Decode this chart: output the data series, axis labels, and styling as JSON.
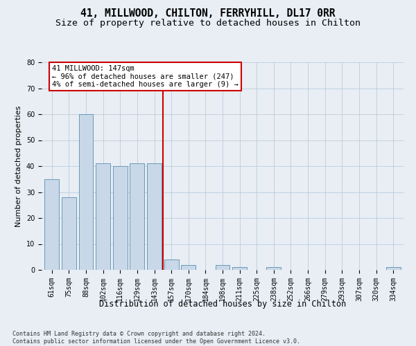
{
  "title": "41, MILLWOOD, CHILTON, FERRYHILL, DL17 0RR",
  "subtitle": "Size of property relative to detached houses in Chilton",
  "xlabel": "Distribution of detached houses by size in Chilton",
  "ylabel": "Number of detached properties",
  "categories": [
    "61sqm",
    "75sqm",
    "88sqm",
    "102sqm",
    "116sqm",
    "129sqm",
    "143sqm",
    "157sqm",
    "170sqm",
    "184sqm",
    "198sqm",
    "211sqm",
    "225sqm",
    "238sqm",
    "252sqm",
    "266sqm",
    "279sqm",
    "293sqm",
    "307sqm",
    "320sqm",
    "334sqm"
  ],
  "values": [
    35,
    28,
    60,
    41,
    40,
    41,
    41,
    4,
    2,
    0,
    2,
    1,
    0,
    1,
    0,
    0,
    0,
    0,
    0,
    0,
    1
  ],
  "bar_color": "#c8d8e8",
  "bar_edge_color": "#5b8db0",
  "vline_color": "#cc0000",
  "annotation_line1": "41 MILLWOOD: 147sqm",
  "annotation_line2": "← 96% of detached houses are smaller (247)",
  "annotation_line3": "4% of semi-detached houses are larger (9) →",
  "annotation_box_color": "#ffffff",
  "annotation_box_edge_color": "#cc0000",
  "ylim": [
    0,
    80
  ],
  "yticks": [
    0,
    10,
    20,
    30,
    40,
    50,
    60,
    70,
    80
  ],
  "grid_color": "#bbccdd",
  "bg_color": "#e8eef4",
  "footnote": "Contains HM Land Registry data © Crown copyright and database right 2024.\nContains public sector information licensed under the Open Government Licence v3.0.",
  "title_fontsize": 10.5,
  "subtitle_fontsize": 9.5,
  "xlabel_fontsize": 8.5,
  "ylabel_fontsize": 8,
  "tick_fontsize": 7,
  "annot_fontsize": 7.5,
  "footnote_fontsize": 6
}
